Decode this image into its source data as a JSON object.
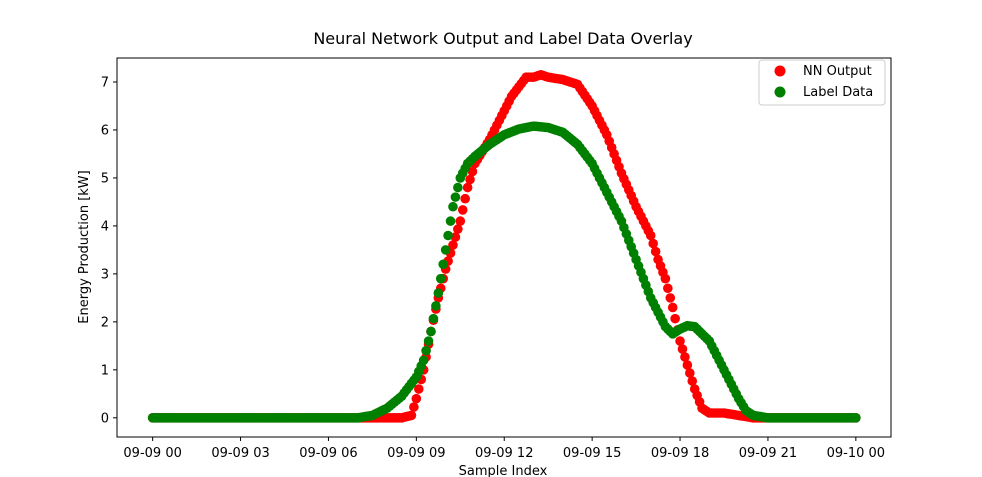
{
  "colors": {
    "nn": "#ff0000",
    "label": "#008000",
    "axis": "#000000",
    "background": "#ffffff"
  },
  "chart_data": {
    "type": "scatter",
    "title": "Neural Network Output and Label Data Overlay",
    "xlabel": "Sample Index",
    "ylabel": "Energy Production [kW]",
    "x_axis": {
      "kind": "datetime",
      "range": [
        "2023-09-08T22:47",
        "2023-09-10T01:12"
      ],
      "ticks": [
        "09-09 00",
        "09-09 03",
        "09-09 06",
        "09-09 09",
        "09-09 12",
        "09-09 15",
        "09-09 18",
        "09-09 21",
        "09-10 00"
      ]
    },
    "y_axis": {
      "range": [
        -0.4,
        7.5
      ],
      "ticks": [
        "0",
        "1",
        "2",
        "3",
        "4",
        "5",
        "6",
        "7"
      ]
    },
    "grid": false,
    "legend": {
      "placement": "top-right",
      "entries": [
        "NN Output",
        "Label Data"
      ]
    },
    "series": [
      {
        "name": "NN Output",
        "color": "#ff0000",
        "points": [
          [
            "09-09 00:00",
            0.0
          ],
          [
            "09-09 07:00",
            0.0
          ],
          [
            "09-09 07:30",
            0.0
          ],
          [
            "09-09 08:00",
            0.0
          ],
          [
            "09-09 08:30",
            0.0
          ],
          [
            "09-09 08:50",
            0.05
          ],
          [
            "09-09 09:00",
            0.4
          ],
          [
            "09-09 09:15",
            1.0
          ],
          [
            "09-09 09:30",
            1.8
          ],
          [
            "09-09 09:45",
            2.5
          ],
          [
            "09-09 10:00",
            3.1
          ],
          [
            "09-09 10:15",
            3.6
          ],
          [
            "09-09 10:30",
            4.1
          ],
          [
            "09-09 10:45",
            4.8
          ],
          [
            "09-09 11:00",
            5.3
          ],
          [
            "09-09 11:30",
            5.8
          ],
          [
            "09-09 12:00",
            6.4
          ],
          [
            "09-09 12:15",
            6.7
          ],
          [
            "09-09 12:30",
            6.9
          ],
          [
            "09-09 12:45",
            7.1
          ],
          [
            "09-09 13:00",
            7.1
          ],
          [
            "09-09 13:15",
            7.15
          ],
          [
            "09-09 13:30",
            7.1
          ],
          [
            "09-09 14:00",
            7.05
          ],
          [
            "09-09 14:30",
            6.95
          ],
          [
            "09-09 15:00",
            6.5
          ],
          [
            "09-09 15:30",
            5.9
          ],
          [
            "09-09 16:00",
            5.1
          ],
          [
            "09-09 16:30",
            4.4
          ],
          [
            "09-09 17:00",
            3.8
          ],
          [
            "09-09 17:15",
            3.3
          ],
          [
            "09-09 17:30",
            2.9
          ],
          [
            "09-09 17:45",
            2.3
          ],
          [
            "09-09 18:00",
            1.6
          ],
          [
            "09-09 18:15",
            1.1
          ],
          [
            "09-09 18:30",
            0.6
          ],
          [
            "09-09 18:45",
            0.2
          ],
          [
            "09-09 19:00",
            0.1
          ],
          [
            "09-09 19:30",
            0.1
          ],
          [
            "09-09 20:00",
            0.05
          ],
          [
            "09-09 20:30",
            0.0
          ],
          [
            "09-09 21:00",
            0.0
          ],
          [
            "09-10 00:00",
            0.0
          ]
        ]
      },
      {
        "name": "Label Data",
        "color": "#008000",
        "points": [
          [
            "09-09 00:00",
            0.0
          ],
          [
            "09-09 07:00",
            0.0
          ],
          [
            "09-09 07:30",
            0.05
          ],
          [
            "09-09 08:00",
            0.2
          ],
          [
            "09-09 08:30",
            0.45
          ],
          [
            "09-09 09:00",
            0.85
          ],
          [
            "09-09 09:15",
            1.2
          ],
          [
            "09-09 09:30",
            1.8
          ],
          [
            "09-09 09:45",
            2.6
          ],
          [
            "09-09 10:00",
            3.5
          ],
          [
            "09-09 10:15",
            4.4
          ],
          [
            "09-09 10:30",
            5.0
          ],
          [
            "09-09 10:45",
            5.3
          ],
          [
            "09-09 11:00",
            5.45
          ],
          [
            "09-09 11:30",
            5.7
          ],
          [
            "09-09 12:00",
            5.9
          ],
          [
            "09-09 12:30",
            6.02
          ],
          [
            "09-09 13:00",
            6.08
          ],
          [
            "09-09 13:30",
            6.05
          ],
          [
            "09-09 14:00",
            5.95
          ],
          [
            "09-09 14:30",
            5.7
          ],
          [
            "09-09 15:00",
            5.3
          ],
          [
            "09-09 15:30",
            4.7
          ],
          [
            "09-09 16:00",
            4.1
          ],
          [
            "09-09 16:30",
            3.3
          ],
          [
            "09-09 17:00",
            2.5
          ],
          [
            "09-09 17:30",
            1.9
          ],
          [
            "09-09 17:45",
            1.75
          ],
          [
            "09-09 18:00",
            1.85
          ],
          [
            "09-09 18:15",
            1.92
          ],
          [
            "09-09 18:30",
            1.9
          ],
          [
            "09-09 19:00",
            1.6
          ],
          [
            "09-09 19:30",
            1.0
          ],
          [
            "09-09 20:00",
            0.4
          ],
          [
            "09-09 20:15",
            0.15
          ],
          [
            "09-09 20:30",
            0.05
          ],
          [
            "09-09 21:00",
            0.0
          ],
          [
            "09-10 00:00",
            0.0
          ]
        ]
      }
    ]
  }
}
